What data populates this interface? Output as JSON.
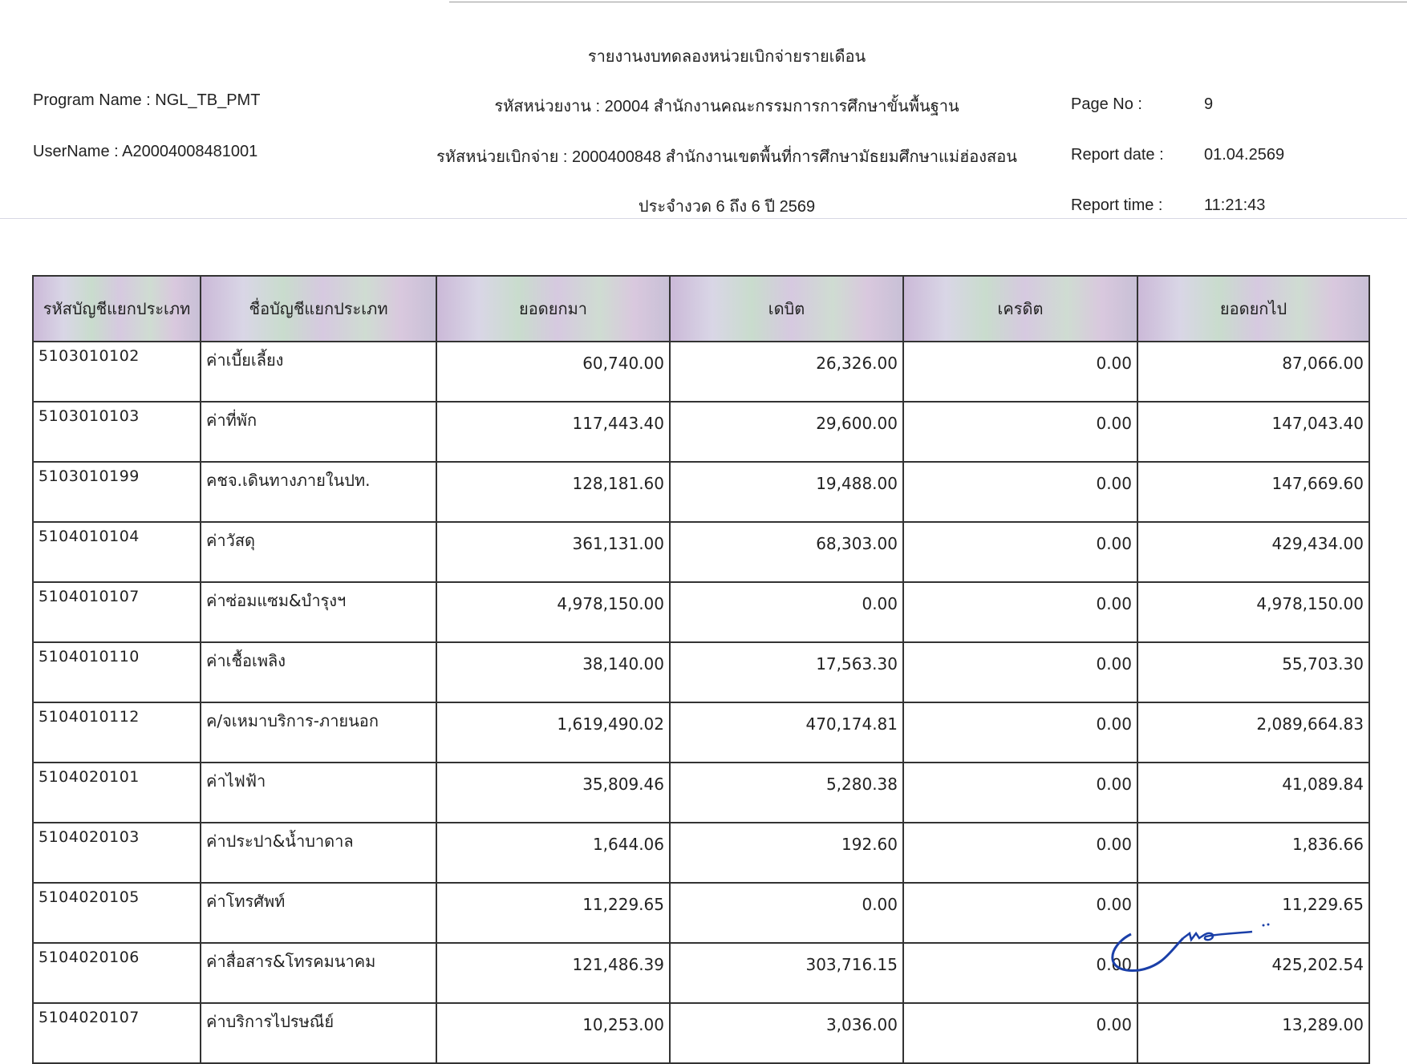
{
  "report": {
    "title": "รายงานงบทดลองหน่วยเบิกจ่ายรายเดือน",
    "program_name": "Program Name : NGL_TB_PMT",
    "username": "UserName : A20004008481001",
    "agency": "รหัสหน่วยงาน : 20004 สำนักงานคณะกรรมการการศึกษาขั้นพื้นฐาน",
    "disbursing_unit": "รหัสหน่วยเบิกจ่าย : 2000400848 สำนักงานเขตพื้นที่การศึกษามัธยมศึกษาแม่ฮ่องสอน",
    "period": "ประจำงวด 6 ถึง 6 ปี 2569",
    "page_no_label": "Page No :",
    "page_no": "9",
    "report_date_label": "Report date :",
    "report_date": "01.04.2569",
    "report_time_label": "Report time :",
    "report_time": "11:21:43"
  },
  "table": {
    "headers": [
      "รหัสบัญชีแยกประเภท",
      "ชื่อบัญชีแยกประเภท",
      "ยอดยกมา",
      "เดบิต",
      "เครดิต",
      "ยอดยกไป"
    ],
    "rows": [
      [
        "5103010102",
        "ค่าเบี้ยเลี้ยง",
        "60,740.00",
        "26,326.00",
        "0.00",
        "87,066.00"
      ],
      [
        "5103010103",
        "ค่าที่พัก",
        "117,443.40",
        "29,600.00",
        "0.00",
        "147,043.40"
      ],
      [
        "5103010199",
        "คชจ.เดินทางภายในปท.",
        "128,181.60",
        "19,488.00",
        "0.00",
        "147,669.60"
      ],
      [
        "5104010104",
        "ค่าวัสดุ",
        "361,131.00",
        "68,303.00",
        "0.00",
        "429,434.00"
      ],
      [
        "5104010107",
        "ค่าซ่อมแซม&บำรุงฯ",
        "4,978,150.00",
        "0.00",
        "0.00",
        "4,978,150.00"
      ],
      [
        "5104010110",
        "ค่าเชื้อเพลิง",
        "38,140.00",
        "17,563.30",
        "0.00",
        "55,703.30"
      ],
      [
        "5104010112",
        "ค/จเหมาบริการ-ภายนอก",
        "1,619,490.02",
        "470,174.81",
        "0.00",
        "2,089,664.83"
      ],
      [
        "5104020101",
        "ค่าไฟฟ้า",
        "35,809.46",
        "5,280.38",
        "0.00",
        "41,089.84"
      ],
      [
        "5104020103",
        "ค่าประปา&น้ำบาดาล",
        "1,644.06",
        "192.60",
        "0.00",
        "1,836.66"
      ],
      [
        "5104020105",
        "ค่าโทรศัพท์",
        "11,229.65",
        "0.00",
        "0.00",
        "11,229.65"
      ],
      [
        "5104020106",
        "ค่าสื่อสาร&โทรคมนาคม",
        "121,486.39",
        "303,716.15",
        "0.00",
        "425,202.54"
      ],
      [
        "5104020107",
        "ค่าบริการไปรษณีย์",
        "10,253.00",
        "3,036.00",
        "0.00",
        "13,289.00"
      ]
    ]
  },
  "colors": {
    "signature": "#1a3fa8",
    "header_bg": "#d6cfe2"
  }
}
